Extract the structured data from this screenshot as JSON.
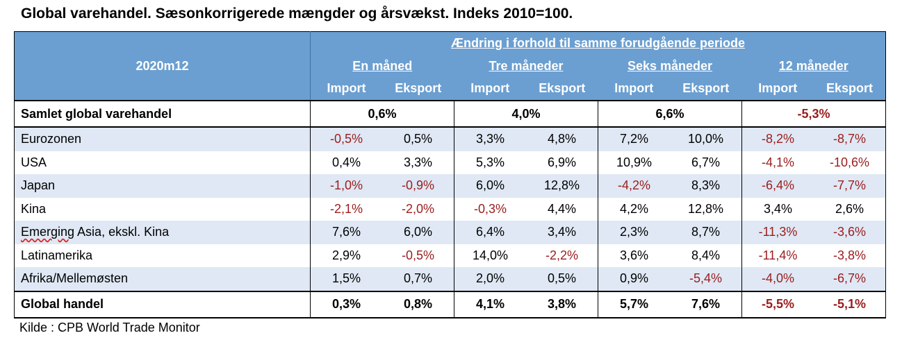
{
  "title": "Global varehandel. Sæsonkorrigerede mængder og årsvækst. Indeks 2010=100.",
  "source": "Kilde : CPB World Trade Monitor",
  "chart_data": {
    "type": "table",
    "corner_label": "2020m12",
    "group_header": "Ændring i forhold til samme forudgående periode",
    "periods": [
      "En måned",
      "Tre måneder",
      "Seks måneder",
      "12 måneder"
    ],
    "subcolumns": [
      "Import",
      "Eksport"
    ],
    "total_row": {
      "label": "Samlet global varehandel",
      "values": [
        "0,6%",
        "4,0%",
        "6,6%",
        "-5,3%"
      ]
    },
    "rows": [
      {
        "label": "Eurozonen",
        "values": [
          "-0,5%",
          "0,5%",
          "3,3%",
          "4,8%",
          "7,2%",
          "10,0%",
          "-8,2%",
          "-8,7%"
        ]
      },
      {
        "label": "USA",
        "values": [
          "0,4%",
          "3,3%",
          "5,3%",
          "6,9%",
          "10,9%",
          "6,7%",
          "-4,1%",
          "-10,6%"
        ]
      },
      {
        "label": "Japan",
        "values": [
          "-1,0%",
          "-0,9%",
          "6,0%",
          "12,8%",
          "-4,2%",
          "8,3%",
          "-6,4%",
          "-7,7%"
        ]
      },
      {
        "label": "Kina",
        "values": [
          "-2,1%",
          "-2,0%",
          "-0,3%",
          "4,4%",
          "4,2%",
          "12,8%",
          "3,4%",
          "2,6%"
        ]
      },
      {
        "label": "Emerging Asia, ekskl. Kina",
        "values": [
          "7,6%",
          "6,0%",
          "6,4%",
          "3,4%",
          "2,3%",
          "8,7%",
          "-11,3%",
          "-3,6%"
        ]
      },
      {
        "label": "Latinamerika",
        "values": [
          "2,9%",
          "-0,5%",
          "14,0%",
          "-2,2%",
          "3,6%",
          "8,4%",
          "-11,4%",
          "-3,8%"
        ]
      },
      {
        "label": "Afrika/Mellemøsten",
        "values": [
          "1,5%",
          "0,7%",
          "2,0%",
          "0,5%",
          "0,9%",
          "-5,4%",
          "-4,0%",
          "-6,7%"
        ]
      }
    ],
    "global_row": {
      "label": "Global handel",
      "values": [
        "0,3%",
        "0,8%",
        "4,1%",
        "3,8%",
        "5,7%",
        "7,6%",
        "-5,5%",
        "-5,1%"
      ]
    },
    "colors": {
      "header_bg": "#6b9fd1",
      "header_text": "#ffffff",
      "negative": "#9b1c1c",
      "alt_row": "#dfe8f4"
    }
  }
}
